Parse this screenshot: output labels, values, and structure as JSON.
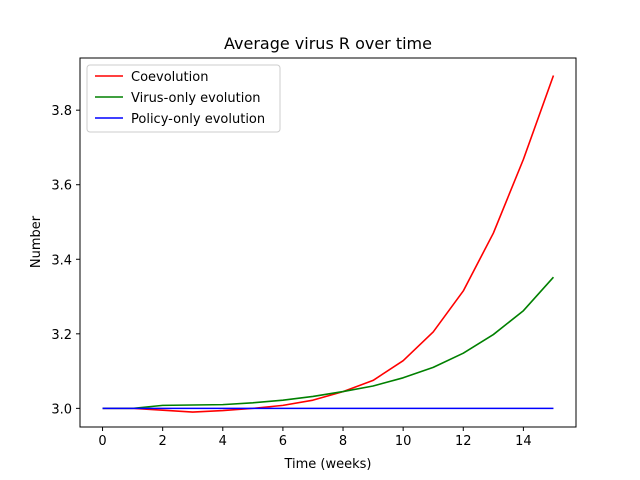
{
  "chart_data": {
    "type": "line",
    "title": "Average virus R over time",
    "xlabel": "Time (weeks)",
    "ylabel": "Number",
    "xlim": [
      -0.75,
      15.75
    ],
    "ylim": [
      2.95,
      3.94
    ],
    "xticks": [
      0,
      2,
      4,
      6,
      8,
      10,
      12,
      14
    ],
    "yticks": [
      3.0,
      3.2,
      3.4,
      3.6,
      3.8
    ],
    "ytick_labels": [
      "3.0",
      "3.2",
      "3.4",
      "3.6",
      "3.8"
    ],
    "grid": false,
    "legend_position": "upper-left",
    "x": [
      0,
      1,
      2,
      3,
      4,
      5,
      6,
      7,
      8,
      9,
      10,
      11,
      12,
      13,
      14,
      15
    ],
    "series": [
      {
        "name": "Coevolution",
        "color": "#ff0000",
        "values": [
          3.0,
          3.0,
          2.995,
          2.99,
          2.994,
          3.0,
          3.008,
          3.022,
          3.045,
          3.075,
          3.128,
          3.205,
          3.315,
          3.47,
          3.668,
          3.893
        ]
      },
      {
        "name": "Virus-only evolution",
        "color": "#008000",
        "values": [
          3.0,
          3.0,
          3.008,
          3.009,
          3.01,
          3.015,
          3.022,
          3.032,
          3.045,
          3.06,
          3.082,
          3.11,
          3.148,
          3.198,
          3.262,
          3.352
        ]
      },
      {
        "name": "Policy-only evolution",
        "color": "#0000ff",
        "values": [
          3.0,
          3.0,
          3.0,
          3.0,
          3.0,
          3.0,
          3.0,
          3.0,
          3.0,
          3.0,
          3.0,
          3.0,
          3.0,
          3.0,
          3.0,
          3.0
        ]
      }
    ]
  }
}
